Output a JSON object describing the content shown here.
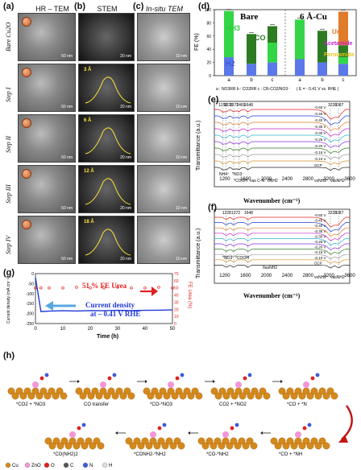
{
  "panels": {
    "a": "(a)",
    "b": "(b)",
    "c": "(c)",
    "d": "(d)",
    "e": "(e)",
    "f": "(f)",
    "g": "(g)",
    "h": "(h)"
  },
  "column_headers": {
    "a": "HR – TEM",
    "b": "STEM",
    "c": "In-situ TEM"
  },
  "row_labels": [
    "Bare Cu2O",
    "Step I",
    "Step II",
    "Step III",
    "Step IV"
  ],
  "stem_labels": [
    "3 Å",
    "6 Å",
    "12 Å",
    "18 Å"
  ],
  "scale_bars": {
    "a": "50 nm",
    "b": "20 nm",
    "c": "10 nm"
  },
  "fe_chart": {
    "title_left": "Bare",
    "title_right": "6 Å-Cu",
    "ylabel": "FE (%)",
    "legend": [
      "Urea",
      "Acetamide",
      "Formamide"
    ],
    "bar_labels": [
      "NH3",
      "CO",
      "H2"
    ],
    "xtick": [
      "a",
      "b",
      "c",
      "a",
      "b",
      "c"
    ],
    "footnote": "a : NO3RR    b : CO2RR    c : CR-CO2/NO3⁻",
    "condition": "( E = - 0.41 V vs. RHE )"
  },
  "ftir_e": {
    "ylabel": "Transmittance (a.u.)",
    "xlabel": "Wavenumber (cm⁻¹)",
    "peaks": [
      "1159",
      "1228",
      "1372",
      "1469",
      "1648",
      "3228",
      "3387"
    ],
    "potentials": [
      "-0.50 V",
      "-0.45 V",
      "-0.40 V",
      "-0.35 V",
      "-0.30 V",
      "-0.25 V",
      "-0.20 V",
      "-0.15 V",
      "-0.10 V",
      "OCP"
    ],
    "assign": [
      "NH4⁺",
      "*NO3⁻",
      "*COOH",
      "νas C-N",
      "δNH2",
      "νsNH2",
      "νasNH2"
    ]
  },
  "ftir_f": {
    "ylabel": "Transmittance (a.u.)",
    "xlabel": "Wavenumber (cm⁻¹)",
    "peaks": [
      "1228",
      "1372",
      "1648",
      "3228",
      "3387"
    ],
    "potentials": [
      "-0.50 V",
      "-0.45 V",
      "-0.40 V",
      "-0.35 V",
      "-0.30 V",
      "-0.25 V",
      "-0.20 V",
      "-0.15 V",
      "-0.10 V",
      "OCP"
    ],
    "assign": [
      "*NO3⁻",
      "*COOH",
      "δasNH2",
      "νsNH2",
      "νasNH2"
    ]
  },
  "stability": {
    "ylabel_left": "Current density (mA cm⁻²)",
    "ylabel_right": "FE Urea (%)",
    "xlabel": "Time (h)",
    "annot_fe": "51 % FE Urea",
    "annot_cd1": "Current density",
    "annot_cd2": "at – 0.41 V RHE"
  },
  "mechanism": {
    "steps": [
      "*CO2 + *NO3",
      "CO transfer",
      "*CO-*NO3",
      "CO2 + *NO2",
      "*CO + *N",
      "*CO + *NH",
      "*CO-*NH2",
      "*CONH2-*NH2",
      "*CO(NH2)2"
    ],
    "legend": [
      "Cu",
      "ZnO",
      "O",
      "C",
      "N",
      "H"
    ]
  },
  "chart_data": [
    {
      "type": "bar",
      "categories": [
        "a",
        "b",
        "c",
        "a",
        "b",
        "c"
      ],
      "ylim": [
        0,
        100
      ],
      "ylabel": "FE (%)",
      "series": [
        {
          "name": "H2",
          "values": [
            28,
            18,
            20,
            25,
            20,
            18
          ]
        },
        {
          "name": "NH3",
          "values": [
            70,
            0,
            30,
            60,
            0,
            10
          ]
        },
        {
          "name": "CO",
          "values": [
            0,
            45,
            25,
            0,
            48,
            18
          ]
        },
        {
          "name": "Urea",
          "values": [
            0,
            0,
            0,
            0,
            0,
            51
          ]
        }
      ]
    },
    {
      "type": "line",
      "xlabel": "Time (h)",
      "ylabel": "Current density (mA cm⁻²)",
      "x": [
        0,
        2,
        5,
        10,
        15,
        20,
        25,
        30,
        35,
        40,
        45,
        50
      ],
      "series": [
        {
          "name": "Current density",
          "values": [
            -20,
            -190,
            -188,
            -186,
            -187,
            -185,
            -186,
            -184,
            -185,
            -184,
            -183,
            -182
          ]
        },
        {
          "name": "FE Urea",
          "values": [
            50,
            50,
            50,
            50,
            51,
            50,
            50,
            51,
            50,
            50,
            51,
            50
          ]
        }
      ],
      "ylim": [
        -250,
        0
      ],
      "y2lim": [
        0,
        70
      ]
    }
  ]
}
